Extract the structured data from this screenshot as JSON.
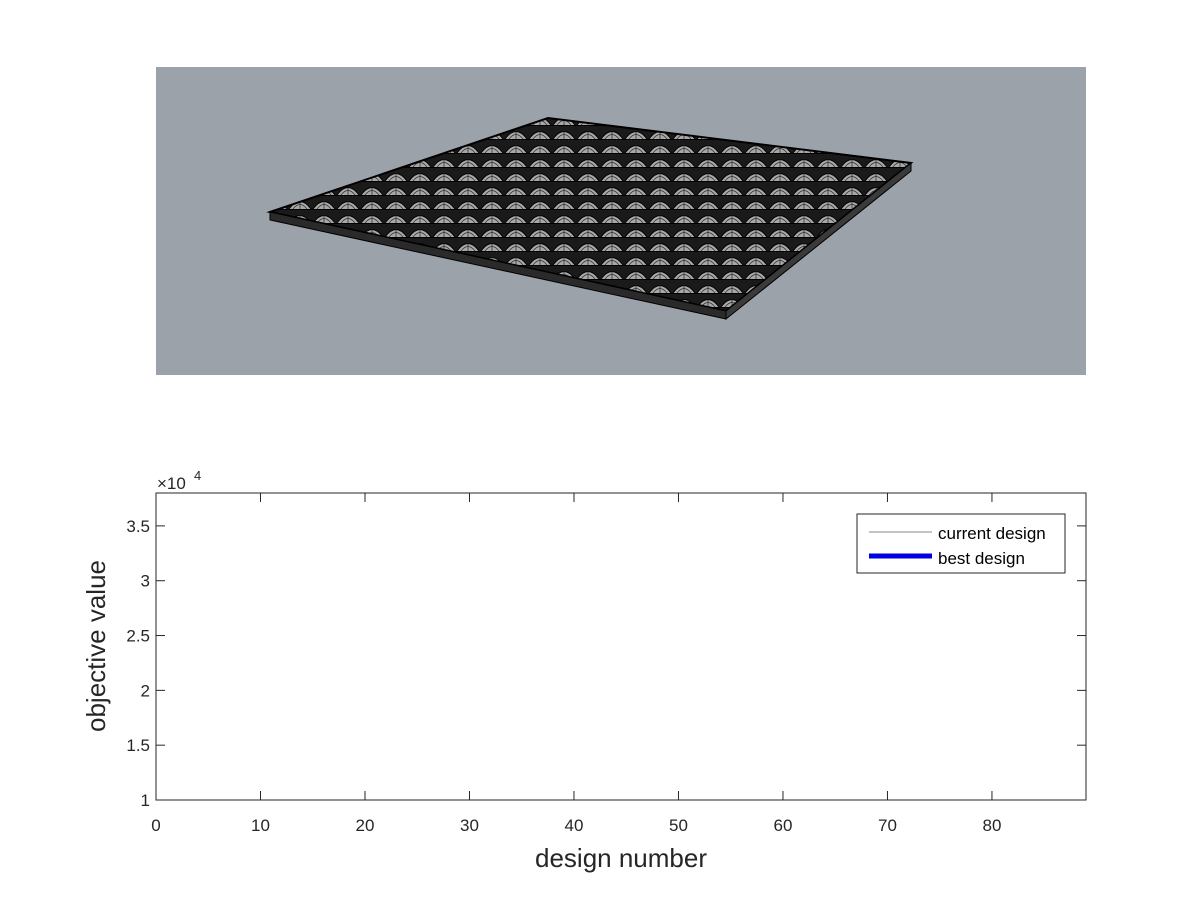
{
  "chart_data": [
    {
      "type": "image",
      "background_color": "#9ca2aa",
      "content": "3d-shell-panel-render"
    },
    {
      "type": "line",
      "title": "",
      "xlabel": "design number",
      "ylabel": "objective value",
      "xlim": [
        0,
        89
      ],
      "ylim": [
        10000,
        38000
      ],
      "y_exponent_label": "×10",
      "y_exponent_power": "4",
      "grid": false,
      "legend_placement": "top-right",
      "xticks": [
        0,
        10,
        20,
        30,
        40,
        50,
        60,
        70,
        80
      ],
      "xtick_labels": [
        "0",
        "10",
        "20",
        "30",
        "40",
        "50",
        "60",
        "70",
        "80"
      ],
      "yticks": [
        10000,
        15000,
        20000,
        25000,
        30000,
        35000
      ],
      "ytick_labels": [
        "1",
        "1.5",
        "2",
        "2.5",
        "3",
        "3.5"
      ],
      "series": [
        {
          "name": "current design",
          "color": "#888888",
          "line_width": "thin",
          "x": [],
          "y": []
        },
        {
          "name": "best design",
          "color": "#0000e0",
          "line_width": "thick",
          "x": [],
          "y": []
        }
      ]
    }
  ]
}
